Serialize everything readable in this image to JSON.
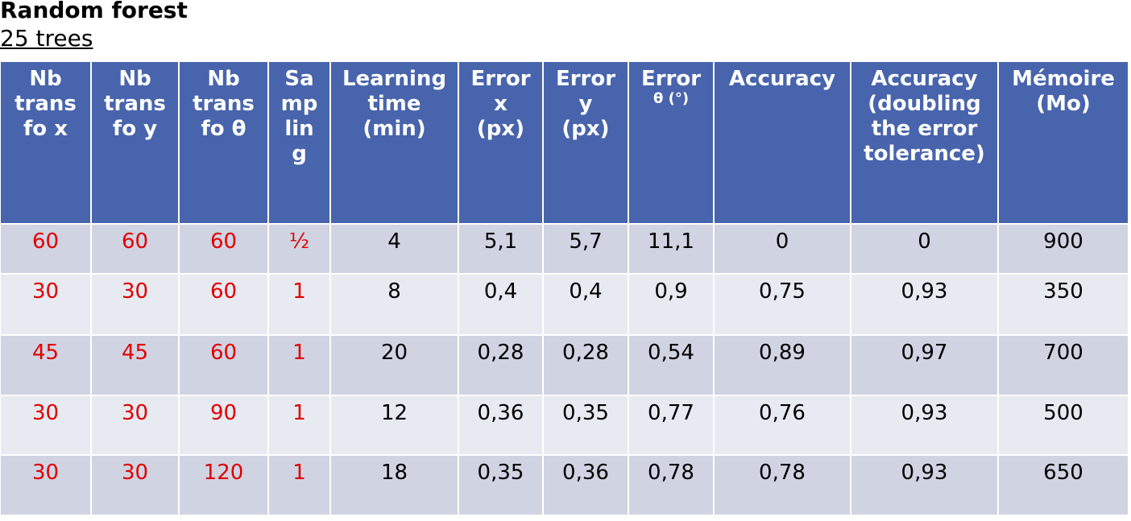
{
  "title": "Random forest",
  "subtitle": "25 trees",
  "table": {
    "header": [
      [
        "Nb",
        "trans",
        "fo x"
      ],
      [
        "Nb",
        "trans",
        "fo y"
      ],
      [
        "Nb",
        "trans",
        "fo θ"
      ],
      [
        "Sa",
        "mp",
        "lin",
        "g"
      ],
      [
        "Learning",
        "time",
        "(min)"
      ],
      [
        "Error",
        "x",
        "(px)"
      ],
      [
        "Error",
        "y",
        "(px)"
      ],
      [
        "Error",
        "θ (°)"
      ],
      [
        "Accuracy"
      ],
      [
        "Accuracy",
        "(doubling",
        "the error",
        "tolerance)"
      ],
      [
        "Mémoire",
        "(Mo)"
      ]
    ],
    "rows": [
      [
        "60",
        "60",
        "60",
        "½",
        "4",
        "5,1",
        "5,7",
        "11,1",
        "0",
        "0",
        "900"
      ],
      [
        "30",
        "30",
        "60",
        "1",
        "8",
        "0,4",
        "0,4",
        "0,9",
        "0,75",
        "0,93",
        "350"
      ],
      [
        "45",
        "45",
        "60",
        "1",
        "20",
        "0,28",
        "0,28",
        "0,54",
        "0,89",
        "0,97",
        "700"
      ],
      [
        "30",
        "30",
        "90",
        "1",
        "12",
        "0,36",
        "0,35",
        "0,77",
        "0,76",
        "0,93",
        "500"
      ],
      [
        "30",
        "30",
        "120",
        "1",
        "18",
        "0,35",
        "0,36",
        "0,78",
        "0,78",
        "0,93",
        "650"
      ]
    ]
  }
}
